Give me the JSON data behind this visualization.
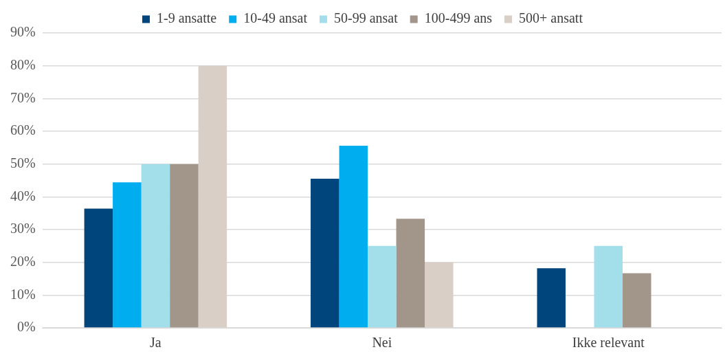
{
  "chart_data": {
    "type": "bar",
    "categories": [
      "Ja",
      "Nei",
      "Ikke relevant"
    ],
    "series": [
      {
        "name": "1-9 ansatte",
        "color": "#00457c",
        "values": [
          36.4,
          45.5,
          18.2
        ]
      },
      {
        "name": "10-49 ansat",
        "color": "#00adef",
        "values": [
          44.4,
          55.6,
          0
        ]
      },
      {
        "name": "50-99 ansat",
        "color": "#a3dfea",
        "values": [
          50,
          25,
          25
        ]
      },
      {
        "name": "100-499 ans",
        "color": "#a29589",
        "values": [
          50,
          33.3,
          16.7
        ]
      },
      {
        "name": "500+ ansatt",
        "color": "#d9cfc6",
        "values": [
          80,
          20,
          0
        ]
      }
    ],
    "ylim": [
      0,
      90
    ],
    "yticks": [
      {
        "value": 0,
        "label": "0%"
      },
      {
        "value": 10,
        "label": "10%"
      },
      {
        "value": 20,
        "label": "20%"
      },
      {
        "value": 30,
        "label": "30%"
      },
      {
        "value": 40,
        "label": "40%"
      },
      {
        "value": 50,
        "label": "50%"
      },
      {
        "value": 60,
        "label": "60%"
      },
      {
        "value": 70,
        "label": "70%"
      },
      {
        "value": 80,
        "label": "80%"
      },
      {
        "value": 90,
        "label": "90%"
      }
    ],
    "grid": "y",
    "legend": "top"
  }
}
